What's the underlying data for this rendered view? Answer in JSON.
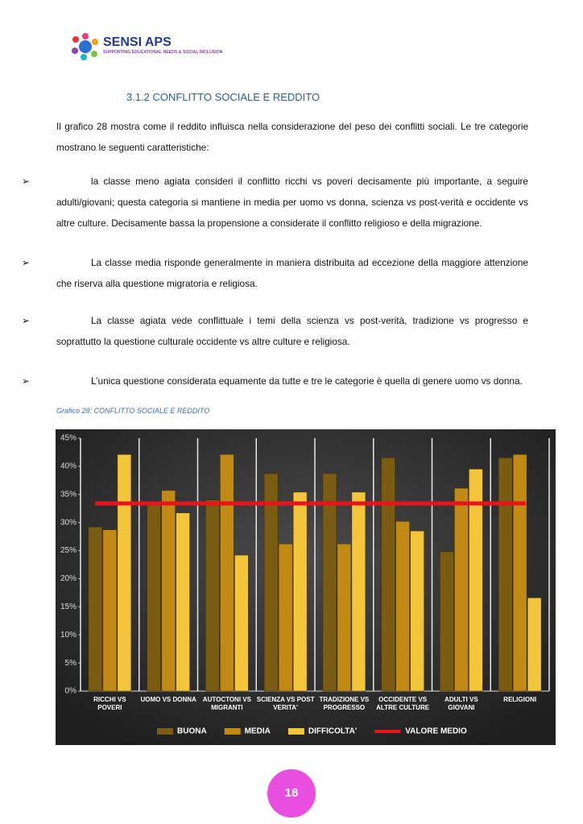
{
  "header": {
    "logo_title": "SENSI APS",
    "logo_subtitle": "SUPPORTING EDUCATIONAL NEEDS & SOCIAL INCLUSION"
  },
  "section_title": "3.1.2 CONFLITTO SOCIALE E REDDITO",
  "intro": "Il grafico 28 mostra come il reddito influisca nella considerazione del peso dei conflitti sociali. Le tre categorie mostrano le seguenti caratteristiche:",
  "bullets": [
    "la classe meno agiata consideri il conflitto ricchi vs poveri decisamente più importante, a seguire adulti/giovani; questa categoria si mantiene in media per uomo vs donna, scienza vs post-verità e occidente vs altre culture. Decisamente bassa la propensione a considerate il conflitto religioso e della migrazione.",
    "La classe media risponde generalmente in maniera distribuita ad eccezione della maggiore attenzione che riserva alla questione migratoria e religiosa.",
    "La classe agiata vede conflittuale i temi della scienza vs post-verità, tradizione vs progresso e soprattutto la questione culturale occidente vs altre culture e religiosa.",
    "L’unica questione considerata equamente da tutte e tre le categorie è quella di genere uomo vs donna."
  ],
  "caption": "Grafico 28: CONFLITTO SOCIALE E REDDITO",
  "chart_data": {
    "type": "bar",
    "categories": [
      "RICCHI VS POVERI",
      "UOMO VS DONNA",
      "AUTOCTONI VS MIGRANTI",
      "SCIENZA VS POST VERITA'",
      "TRADIZIONE VS PROGRESSO",
      "OCCIDENTE VS ALTRE CULTURE",
      "ADULTI VS GIOVANI",
      "RELIGIONI"
    ],
    "series": [
      {
        "name": "BUONA",
        "color": "#7a5c12",
        "values": [
          29.2,
          33.2,
          34,
          38.7,
          38.7,
          41.5,
          24.8,
          41.5
        ]
      },
      {
        "name": "MEDIA",
        "color": "#c08a14",
        "values": [
          28.7,
          35.7,
          42.1,
          26.2,
          26.2,
          30.2,
          36.1,
          42.1
        ]
      },
      {
        "name": "DIFFICOLTA'",
        "color": "#f2c53a",
        "values": [
          42.1,
          31.7,
          24.2,
          35.4,
          35.4,
          28.5,
          39.5,
          16.6
        ]
      }
    ],
    "mean_line": {
      "name": "VALORE MEDIO",
      "value": 33.4,
      "color": "#e8141b"
    },
    "ylim": [
      0,
      45
    ],
    "yticks": [
      {
        "value": 0,
        "label": "0%"
      },
      {
        "value": 5,
        "label": "5%"
      },
      {
        "value": 10,
        "label": "10%"
      },
      {
        "value": 15,
        "label": "15%"
      },
      {
        "value": 20,
        "label": "20%"
      },
      {
        "value": 25,
        "label": "25%"
      },
      {
        "value": 30,
        "label": "30%"
      },
      {
        "value": 35,
        "label": "35%"
      },
      {
        "value": 40,
        "label": "40%"
      },
      {
        "value": 45,
        "label": "45%"
      }
    ],
    "legend": "bottom"
  },
  "page_number": "18"
}
